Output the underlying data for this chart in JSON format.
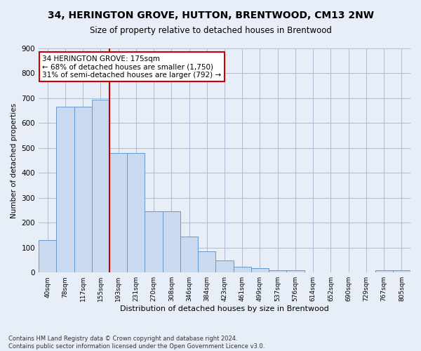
{
  "title": "34, HERINGTON GROVE, HUTTON, BRENTWOOD, CM13 2NW",
  "subtitle": "Size of property relative to detached houses in Brentwood",
  "xlabel": "Distribution of detached houses by size in Brentwood",
  "ylabel": "Number of detached properties",
  "bar_color": "#c8d9f0",
  "bar_edge_color": "#6699cc",
  "background_color": "#e8eef8",
  "grid_color": "#b0bcd4",
  "bins": [
    "40sqm",
    "78sqm",
    "117sqm",
    "155sqm",
    "193sqm",
    "231sqm",
    "270sqm",
    "308sqm",
    "346sqm",
    "384sqm",
    "423sqm",
    "461sqm",
    "499sqm",
    "537sqm",
    "576sqm",
    "614sqm",
    "652sqm",
    "690sqm",
    "729sqm",
    "767sqm",
    "805sqm"
  ],
  "values": [
    130,
    665,
    665,
    695,
    480,
    480,
    245,
    245,
    145,
    85,
    48,
    22,
    18,
    10,
    8,
    0,
    0,
    0,
    0,
    8,
    8
  ],
  "vline_color": "#cc0000",
  "vline_pos": 3.5,
  "annotation_text": "34 HERINGTON GROVE: 175sqm\n← 68% of detached houses are smaller (1,750)\n31% of semi-detached houses are larger (792) →",
  "annotation_box_color": "#ffffff",
  "annotation_box_edge": "#cc0000",
  "footer": "Contains HM Land Registry data © Crown copyright and database right 2024.\nContains public sector information licensed under the Open Government Licence v3.0.",
  "ylim": [
    0,
    900
  ],
  "yticks": [
    0,
    100,
    200,
    300,
    400,
    500,
    600,
    700,
    800,
    900
  ],
  "figsize": [
    6.0,
    5.0
  ],
  "dpi": 100
}
